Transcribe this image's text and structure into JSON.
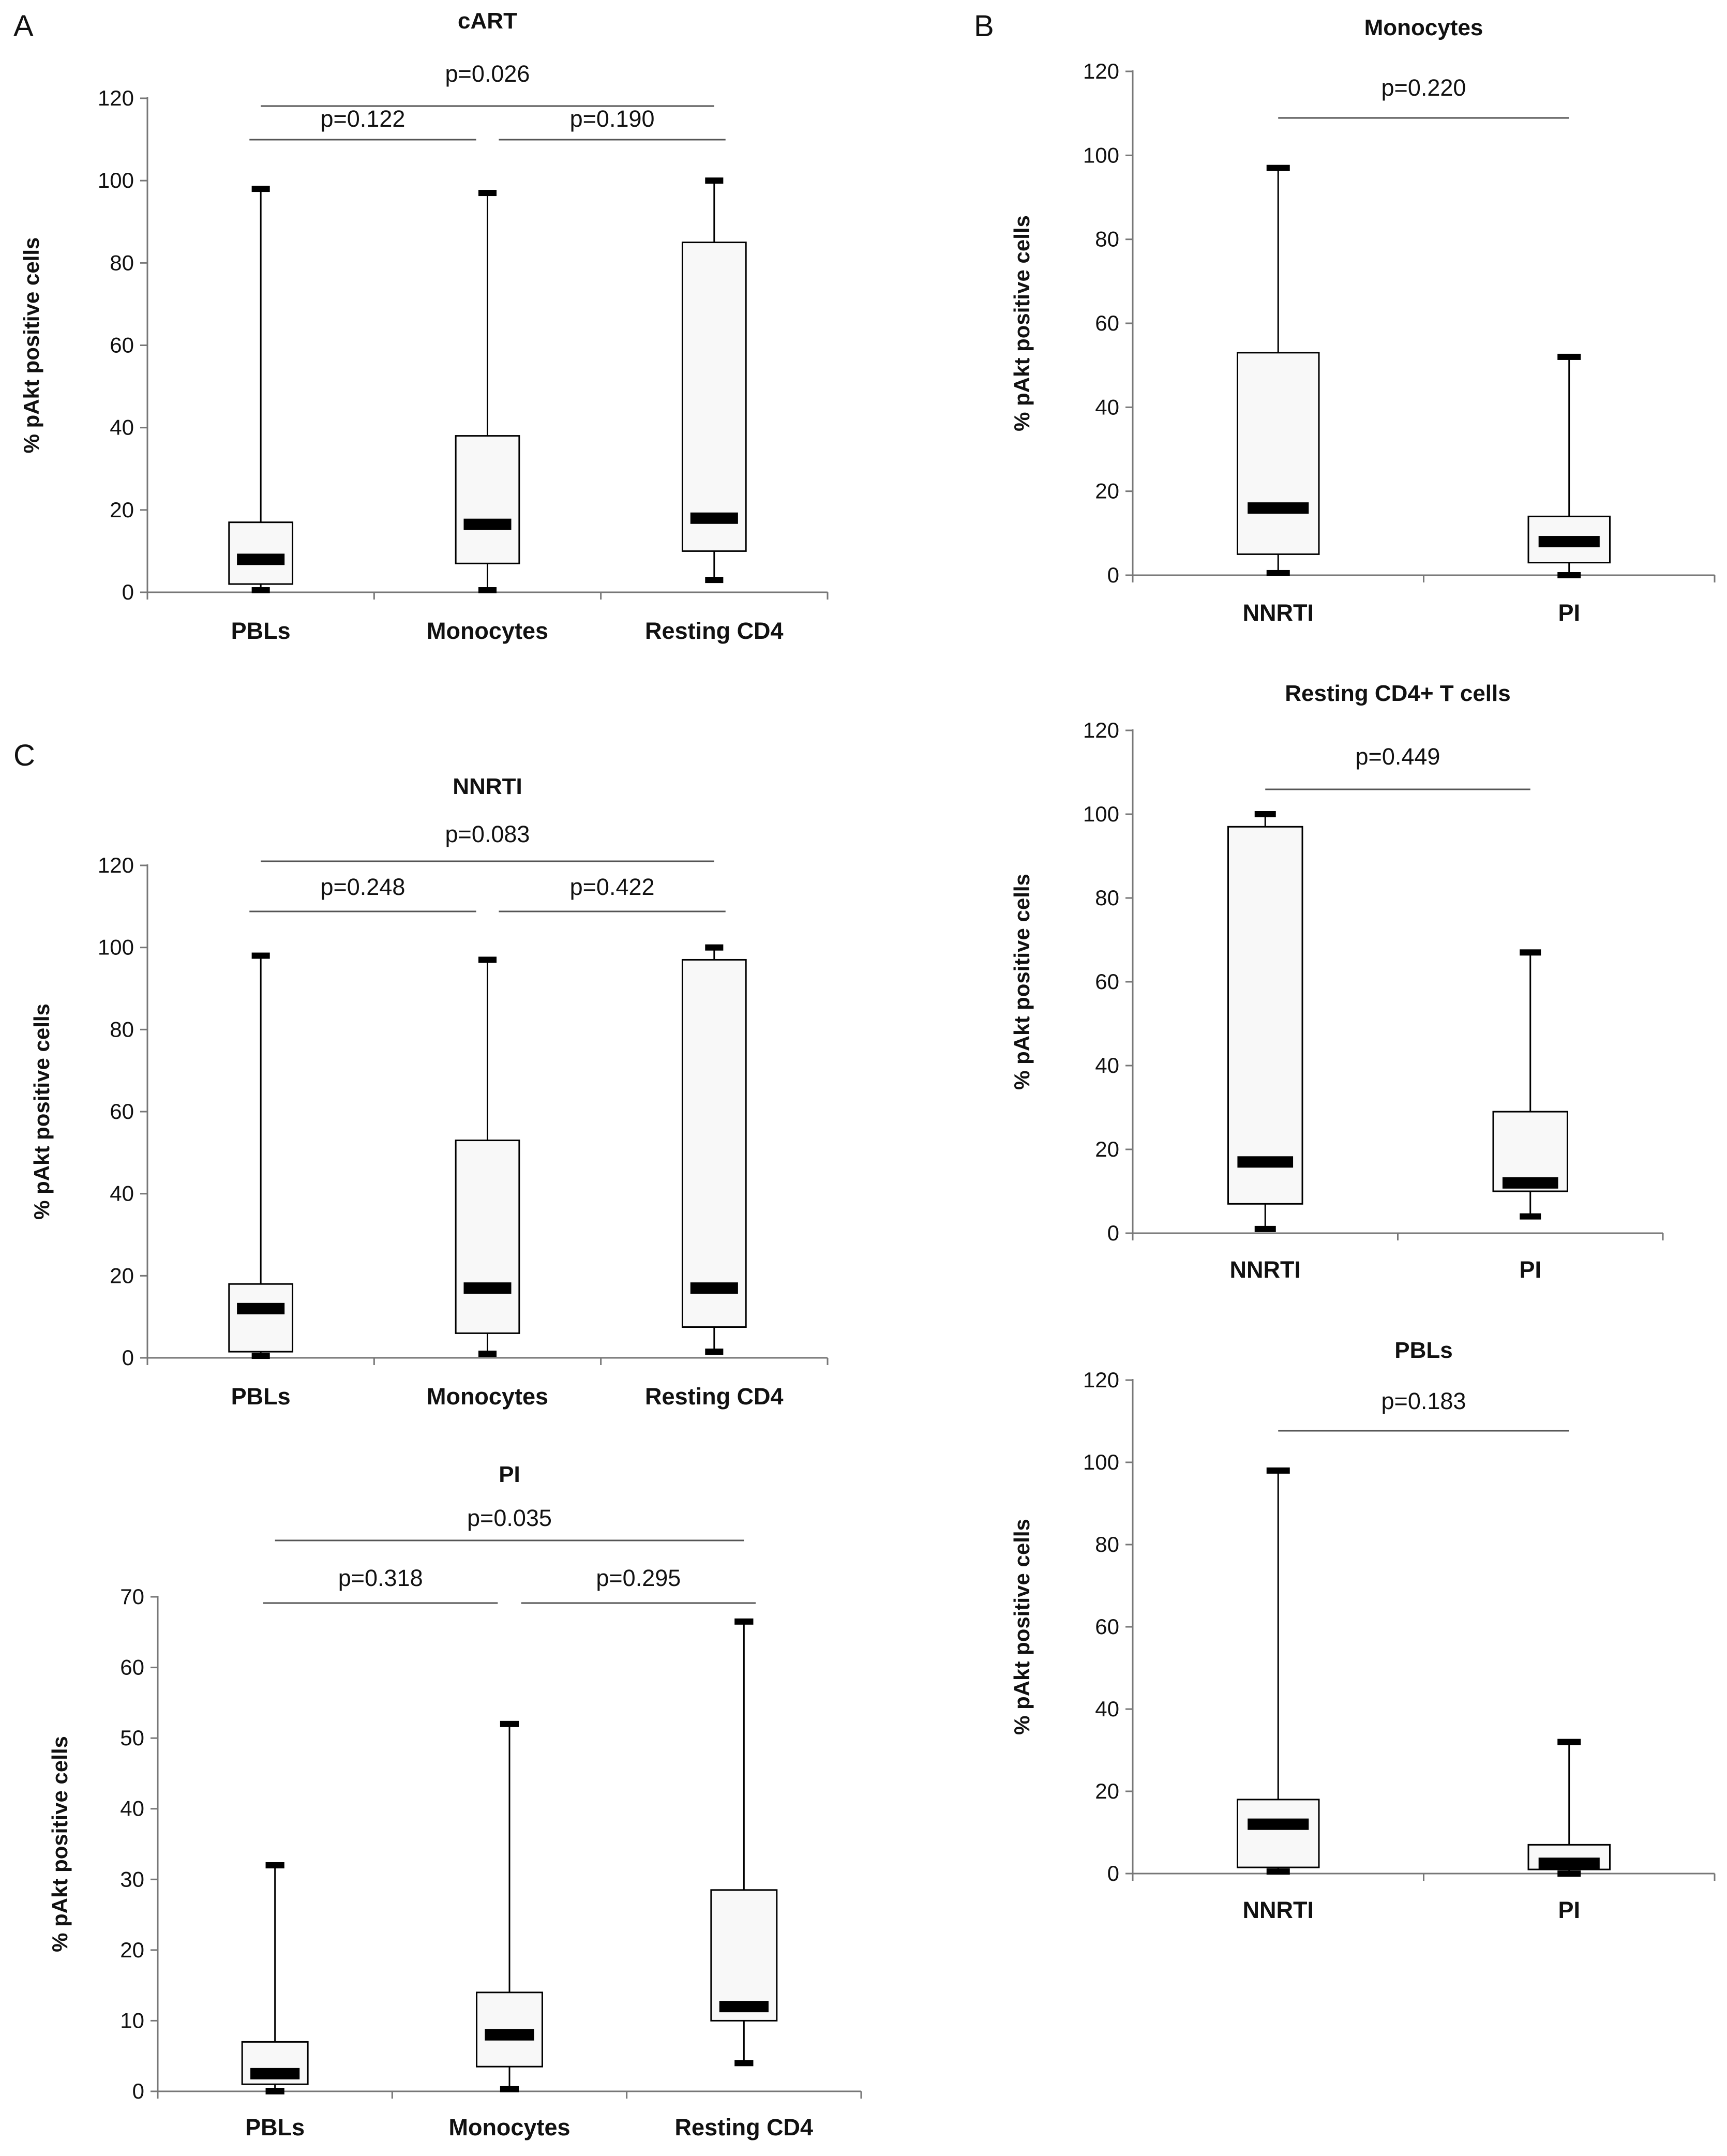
{
  "panel_labels": [
    "A",
    "B",
    "C"
  ],
  "ylabel": "% pAkt positive cells",
  "chart_data": [
    {
      "id": "cart",
      "panel": "A",
      "type": "boxplot",
      "title": "cART",
      "ylabel": "% pAkt positive cells",
      "ylim": [
        0,
        120
      ],
      "yticks": [
        0,
        20,
        40,
        60,
        80,
        100,
        120
      ],
      "categories": [
        "PBLs",
        "Monocytes",
        "Resting CD4"
      ],
      "boxes": [
        {
          "category": "PBLs",
          "min": 0.5,
          "q1": 2,
          "median": 8,
          "q3": 17,
          "max": 98
        },
        {
          "category": "Monocytes",
          "min": 0.5,
          "q1": 7,
          "median": 16.5,
          "q3": 38,
          "max": 97
        },
        {
          "category": "Resting CD4",
          "min": 3,
          "q1": 10,
          "median": 18,
          "q3": 85,
          "max": 100
        }
      ],
      "comparisons": [
        {
          "between": [
            "PBLs",
            "Monocytes"
          ],
          "label": "p=0.122"
        },
        {
          "between": [
            "Monocytes",
            "Resting CD4"
          ],
          "label": "p=0.190"
        },
        {
          "between": [
            "PBLs",
            "Resting CD4"
          ],
          "label": "p=0.026"
        }
      ]
    },
    {
      "id": "b_monocytes",
      "panel": "B",
      "type": "boxplot",
      "title": "Monocytes",
      "ylabel": "% pAkt positive cells",
      "ylim": [
        0,
        120
      ],
      "yticks": [
        0,
        20,
        40,
        60,
        80,
        100,
        120
      ],
      "categories": [
        "NNRTI",
        "PI"
      ],
      "boxes": [
        {
          "category": "NNRTI",
          "min": 0.5,
          "q1": 5,
          "median": 16,
          "q3": 53,
          "max": 97
        },
        {
          "category": "PI",
          "min": 0,
          "q1": 3,
          "median": 8,
          "q3": 14,
          "max": 52
        }
      ],
      "comparisons": [
        {
          "between": [
            "NNRTI",
            "PI"
          ],
          "label": "p=0.220"
        }
      ]
    },
    {
      "id": "b_resting",
      "panel": "B",
      "type": "boxplot",
      "title": "Resting CD4+ T cells",
      "ylabel": "% pAkt positive cells",
      "ylim": [
        0,
        120
      ],
      "yticks": [
        0,
        20,
        40,
        60,
        80,
        100,
        120
      ],
      "categories": [
        "NNRTI",
        "PI"
      ],
      "boxes": [
        {
          "category": "NNRTI",
          "min": 1,
          "q1": 7,
          "median": 17,
          "q3": 97,
          "max": 100
        },
        {
          "category": "PI",
          "min": 4,
          "q1": 10,
          "median": 12,
          "q3": 29,
          "max": 67
        }
      ],
      "comparisons": [
        {
          "between": [
            "NNRTI",
            "PI"
          ],
          "label": "p=0.449"
        }
      ]
    },
    {
      "id": "nnrti",
      "panel": "C",
      "type": "boxplot",
      "title": "NNRTI",
      "ylabel": "% pAkt positive cells",
      "ylim": [
        0,
        120
      ],
      "yticks": [
        0,
        20,
        40,
        60,
        80,
        100,
        120
      ],
      "categories": [
        "PBLs",
        "Monocytes",
        "Resting CD4"
      ],
      "boxes": [
        {
          "category": "PBLs",
          "min": 0.5,
          "q1": 1.5,
          "median": 12,
          "q3": 18,
          "max": 98
        },
        {
          "category": "Monocytes",
          "min": 1,
          "q1": 6,
          "median": 17,
          "q3": 53,
          "max": 97
        },
        {
          "category": "Resting CD4",
          "min": 1.5,
          "q1": 7.5,
          "median": 17,
          "q3": 97,
          "max": 100
        }
      ],
      "comparisons": [
        {
          "between": [
            "PBLs",
            "Monocytes"
          ],
          "label": "p=0.248"
        },
        {
          "between": [
            "Monocytes",
            "Resting CD4"
          ],
          "label": "p=0.422"
        },
        {
          "between": [
            "PBLs",
            "Resting CD4"
          ],
          "label": "p=0.083"
        }
      ]
    },
    {
      "id": "b_pbls",
      "panel": "B",
      "type": "boxplot",
      "title": "PBLs",
      "ylabel": "% pAkt positive cells",
      "ylim": [
        0,
        120
      ],
      "yticks": [
        0,
        20,
        40,
        60,
        80,
        100,
        120
      ],
      "categories": [
        "NNRTI",
        "PI"
      ],
      "boxes": [
        {
          "category": "NNRTI",
          "min": 0.5,
          "q1": 1.5,
          "median": 12,
          "q3": 18,
          "max": 98
        },
        {
          "category": "PI",
          "min": 0,
          "q1": 1,
          "median": 2.5,
          "q3": 7,
          "max": 32
        }
      ],
      "comparisons": [
        {
          "between": [
            "NNRTI",
            "PI"
          ],
          "label": "p=0.183"
        }
      ]
    },
    {
      "id": "pi",
      "panel": "C",
      "type": "boxplot",
      "title": "PI",
      "ylabel": "% pAkt positive cells",
      "ylim": [
        0,
        70
      ],
      "yticks": [
        0,
        10,
        20,
        30,
        40,
        50,
        60,
        70
      ],
      "categories": [
        "PBLs",
        "Monocytes",
        "Resting CD4"
      ],
      "boxes": [
        {
          "category": "PBLs",
          "min": 0,
          "q1": 1,
          "median": 2.5,
          "q3": 7,
          "max": 32
        },
        {
          "category": "Monocytes",
          "min": 0.3,
          "q1": 3.5,
          "median": 8,
          "q3": 14,
          "max": 52
        },
        {
          "category": "Resting CD4",
          "min": 4,
          "q1": 10,
          "median": 12,
          "q3": 28.5,
          "max": 66.5
        }
      ],
      "comparisons": [
        {
          "between": [
            "PBLs",
            "Monocytes"
          ],
          "label": "p=0.318"
        },
        {
          "between": [
            "Monocytes",
            "Resting CD4"
          ],
          "label": "p=0.295"
        },
        {
          "between": [
            "PBLs",
            "Resting CD4"
          ],
          "label": "p=0.035"
        }
      ]
    }
  ]
}
